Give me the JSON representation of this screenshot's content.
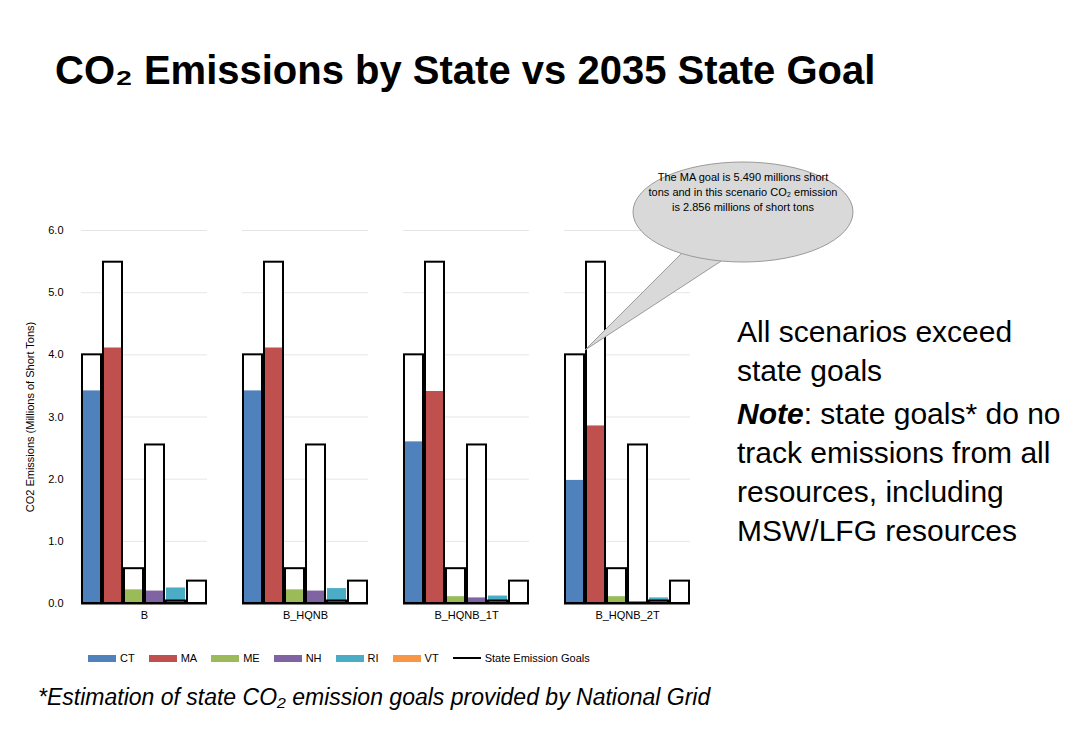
{
  "chart_data": {
    "type": "bar",
    "title": "CO₂ Emissions by State vs 2035 State Goal",
    "y_label": "CO2 Emissions (Millions of Short Tons)",
    "categories": [
      "B",
      "B_HQNB",
      "B_HQNB_1T",
      "B_HQNB_2T"
    ],
    "series": [
      {
        "name": "CT",
        "color": "#4f81bd",
        "values": [
          3.42,
          3.42,
          2.6,
          1.98
        ]
      },
      {
        "name": "MA",
        "color": "#c0504d",
        "values": [
          4.11,
          4.11,
          3.41,
          2.856
        ]
      },
      {
        "name": "ME",
        "color": "#9bbb59",
        "values": [
          0.22,
          0.22,
          0.11,
          0.11
        ]
      },
      {
        "name": "NH",
        "color": "#8064a2",
        "values": [
          0.2,
          0.2,
          0.09,
          0.03
        ]
      },
      {
        "name": "RI",
        "color": "#4bacc6",
        "values": [
          0.25,
          0.24,
          0.12,
          0.09
        ]
      },
      {
        "name": "VT",
        "color": "#f79646",
        "values": [
          0.01,
          0.01,
          0.01,
          0.01
        ]
      }
    ],
    "goals": {
      "name": "State Emission Goals",
      "color": "#000000",
      "values": [
        4.0,
        5.49,
        0.56,
        2.55,
        0.04,
        0.36
      ]
    },
    "ylim": [
      0,
      6
    ],
    "yticks": [
      0,
      1,
      2,
      3,
      4,
      5,
      6
    ],
    "grid": true,
    "callout": "The MA goal is 5.490 millions short tons and in this scenario CO₂ emission is 2.856 millions of short tons",
    "side_text": "All scenarios exceed state goals",
    "note_label": "Note",
    "note_text": ": state goals* do no track emissions from all resources, including MSW/LFG resources",
    "footnote": "*Estimation of state CO₂ emission goals provided by National Grid"
  }
}
